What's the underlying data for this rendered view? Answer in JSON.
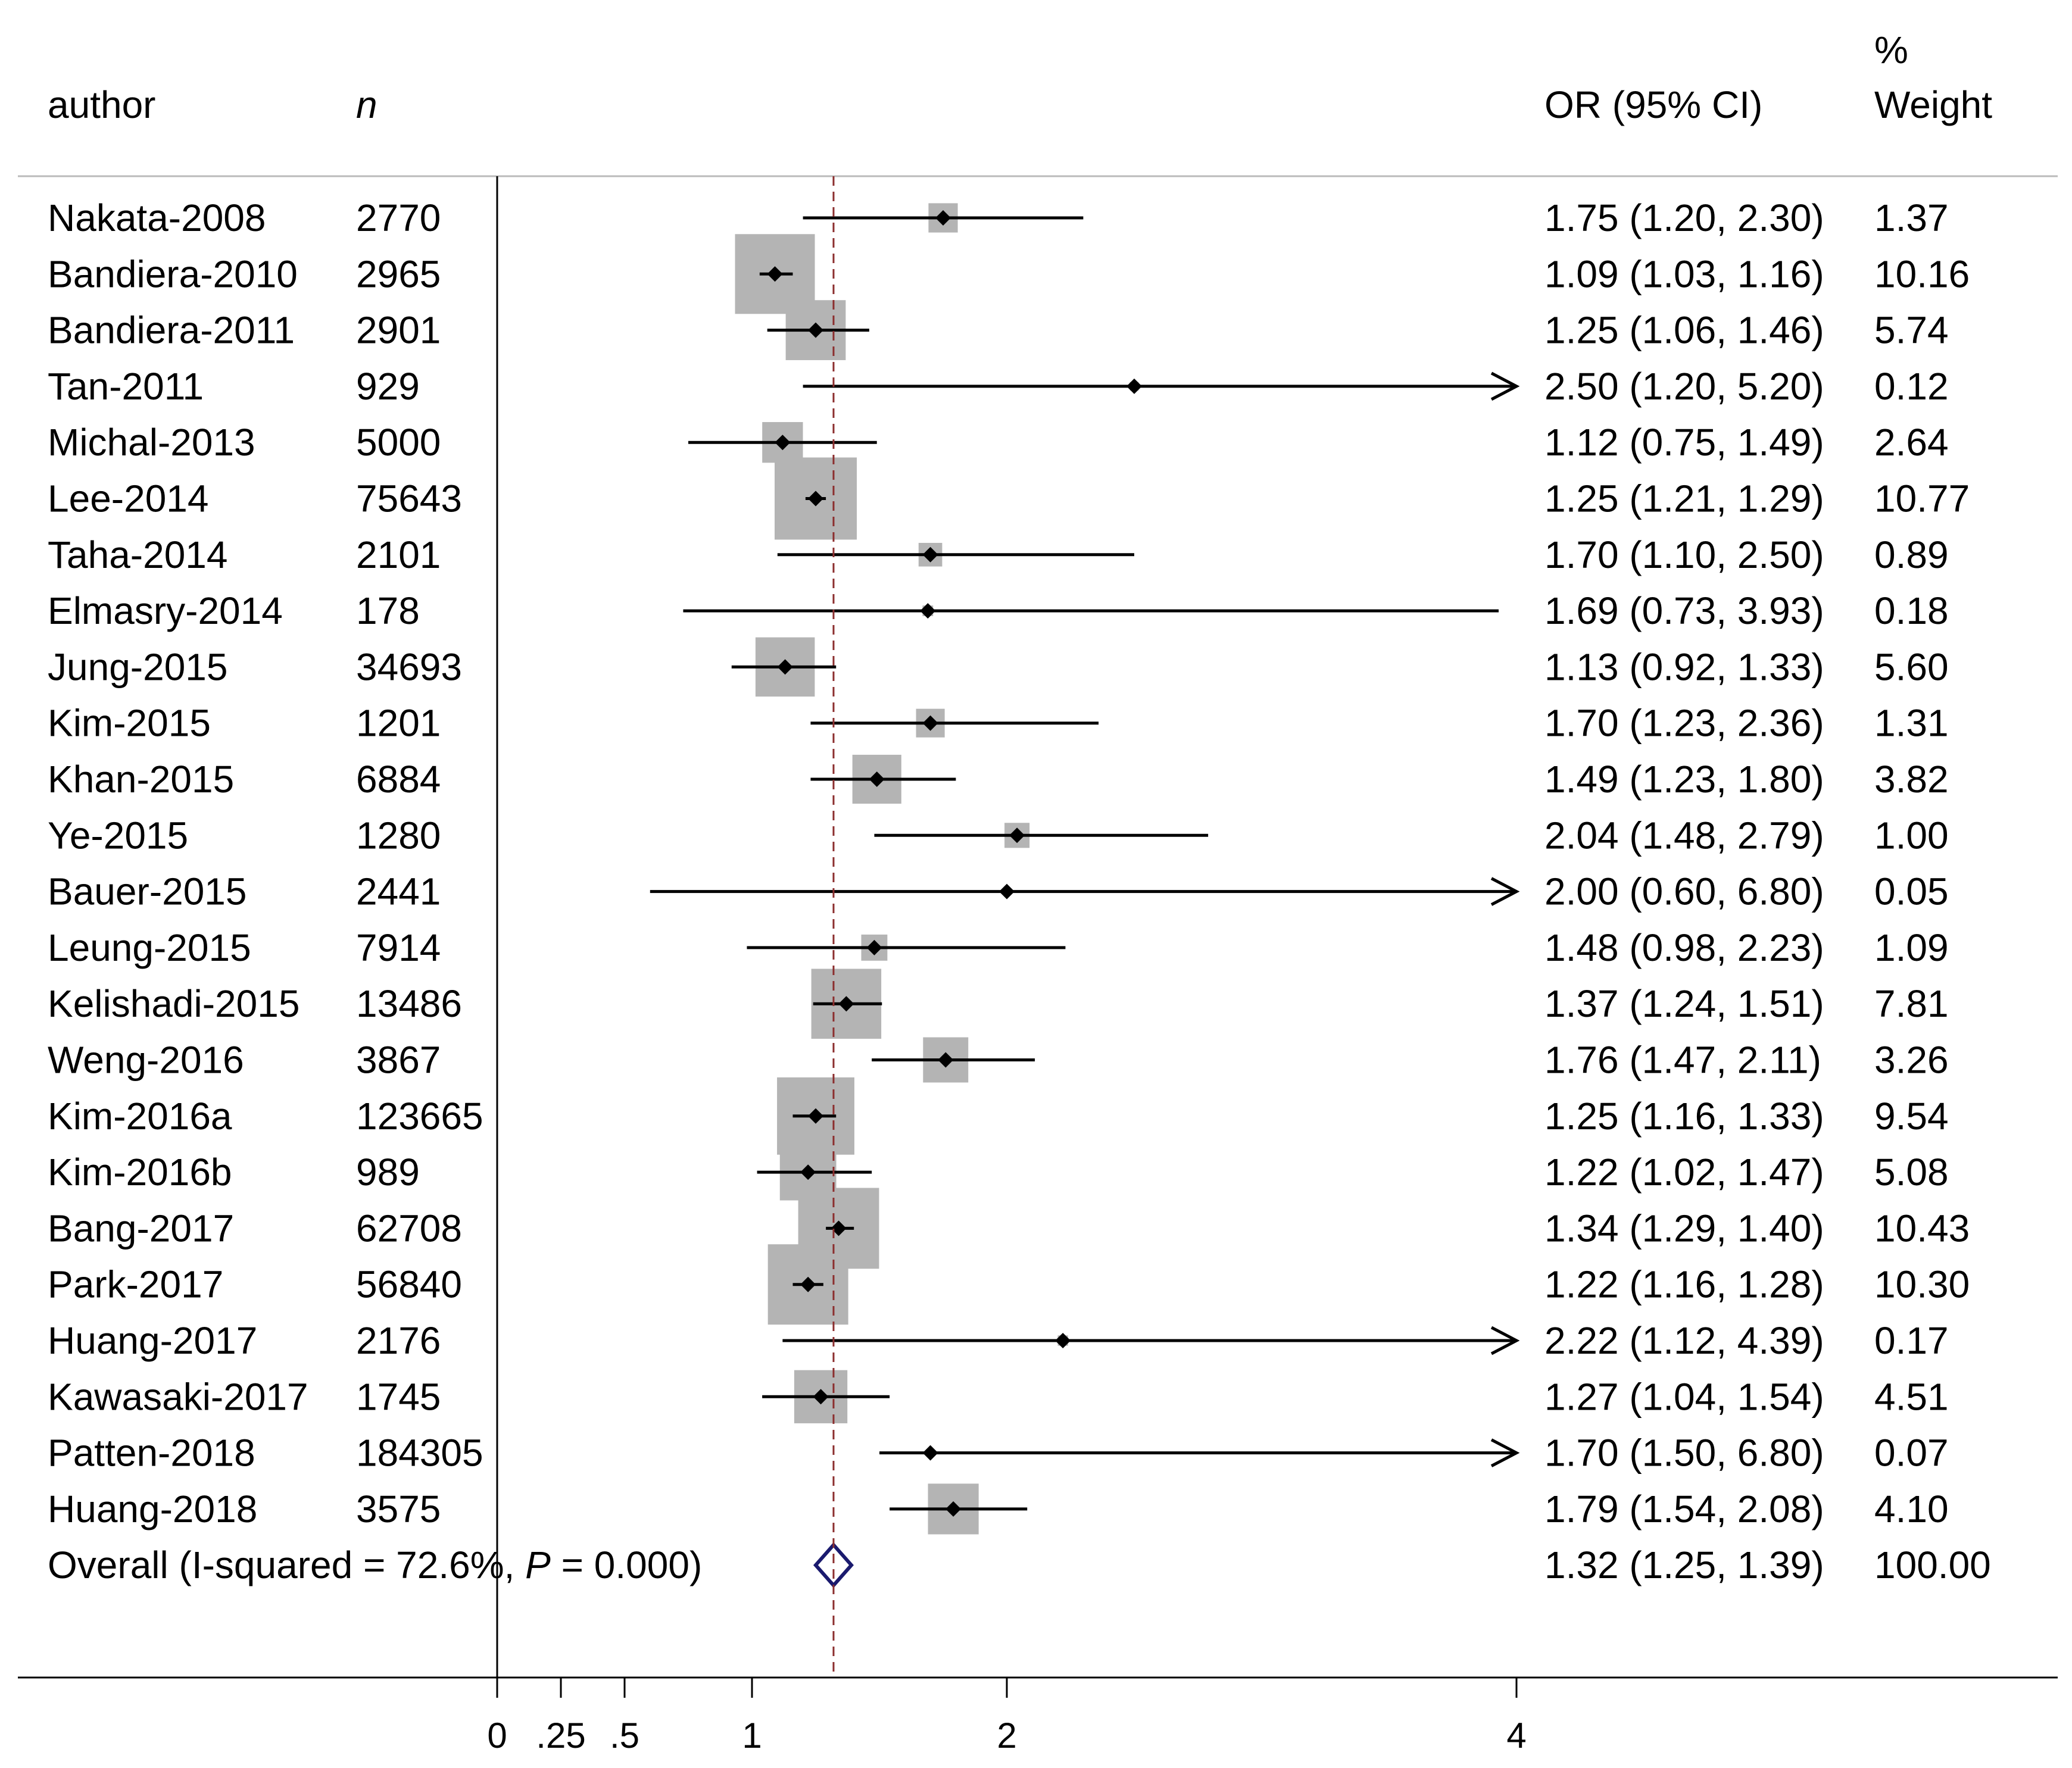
{
  "chart_data": {
    "type": "forest",
    "measure": "OR",
    "columns": {
      "author": "author",
      "n": "n",
      "ci": "OR (95% CI)",
      "weight_top": "%",
      "weight_bottom": "Weight"
    },
    "x_ticks": [
      0,
      0.25,
      0.5,
      1,
      2,
      4
    ],
    "x_tick_labels": [
      "0",
      ".25",
      ".5",
      "1",
      "2",
      "4"
    ],
    "xlim": [
      0,
      4
    ],
    "reference_line": 1.32,
    "studies": [
      {
        "author": "Nakata-2008",
        "n": "2770",
        "or": 1.75,
        "lo": 1.2,
        "hi": 2.3,
        "ci_text": "1.75 (1.20, 2.30)",
        "weight": 1.37,
        "weight_text": "1.37"
      },
      {
        "author": "Bandiera-2010",
        "n": "2965",
        "or": 1.09,
        "lo": 1.03,
        "hi": 1.16,
        "ci_text": "1.09 (1.03, 1.16)",
        "weight": 10.16,
        "weight_text": "10.16"
      },
      {
        "author": "Bandiera-2011",
        "n": "2901",
        "or": 1.25,
        "lo": 1.06,
        "hi": 1.46,
        "ci_text": "1.25 (1.06, 1.46)",
        "weight": 5.74,
        "weight_text": "5.74"
      },
      {
        "author": "Tan-2011",
        "n": "929",
        "or": 2.5,
        "lo": 1.2,
        "hi": 5.2,
        "ci_text": "2.50 (1.20, 5.20)",
        "weight": 0.12,
        "weight_text": "0.12"
      },
      {
        "author": "Michal-2013",
        "n": "5000",
        "or": 1.12,
        "lo": 0.75,
        "hi": 1.49,
        "ci_text": "1.12 (0.75, 1.49)",
        "weight": 2.64,
        "weight_text": "2.64"
      },
      {
        "author": "Lee-2014",
        "n": "75643",
        "or": 1.25,
        "lo": 1.21,
        "hi": 1.29,
        "ci_text": "1.25 (1.21, 1.29)",
        "weight": 10.77,
        "weight_text": "10.77"
      },
      {
        "author": "Taha-2014",
        "n": "2101",
        "or": 1.7,
        "lo": 1.1,
        "hi": 2.5,
        "ci_text": "1.70 (1.10, 2.50)",
        "weight": 0.89,
        "weight_text": "0.89"
      },
      {
        "author": "Elmasry-2014",
        "n": "178",
        "or": 1.69,
        "lo": 0.73,
        "hi": 3.93,
        "ci_text": "1.69 (0.73, 3.93)",
        "weight": 0.18,
        "weight_text": "0.18"
      },
      {
        "author": "Jung-2015",
        "n": "34693",
        "or": 1.13,
        "lo": 0.92,
        "hi": 1.33,
        "ci_text": "1.13 (0.92, 1.33)",
        "weight": 5.6,
        "weight_text": "5.60"
      },
      {
        "author": "Kim-2015",
        "n": "1201",
        "or": 1.7,
        "lo": 1.23,
        "hi": 2.36,
        "ci_text": "1.70 (1.23, 2.36)",
        "weight": 1.31,
        "weight_text": "1.31"
      },
      {
        "author": "Khan-2015",
        "n": "6884",
        "or": 1.49,
        "lo": 1.23,
        "hi": 1.8,
        "ci_text": "1.49 (1.23, 1.80)",
        "weight": 3.82,
        "weight_text": "3.82"
      },
      {
        "author": "Ye-2015",
        "n": "1280",
        "or": 2.04,
        "lo": 1.48,
        "hi": 2.79,
        "ci_text": "2.04 (1.48, 2.79)",
        "weight": 1.0,
        "weight_text": "1.00"
      },
      {
        "author": "Bauer-2015",
        "n": "2441",
        "or": 2.0,
        "lo": 0.6,
        "hi": 6.8,
        "ci_text": "2.00 (0.60, 6.80)",
        "weight": 0.05,
        "weight_text": "0.05"
      },
      {
        "author": "Leung-2015",
        "n": "7914",
        "or": 1.48,
        "lo": 0.98,
        "hi": 2.23,
        "ci_text": "1.48 (0.98, 2.23)",
        "weight": 1.09,
        "weight_text": "1.09"
      },
      {
        "author": "Kelishadi-2015",
        "n": "13486",
        "or": 1.37,
        "lo": 1.24,
        "hi": 1.51,
        "ci_text": "1.37 (1.24, 1.51)",
        "weight": 7.81,
        "weight_text": "7.81"
      },
      {
        "author": "Weng-2016",
        "n": "3867",
        "or": 1.76,
        "lo": 1.47,
        "hi": 2.11,
        "ci_text": "1.76 (1.47, 2.11)",
        "weight": 3.26,
        "weight_text": "3.26"
      },
      {
        "author": "Kim-2016a",
        "n": "123665",
        "or": 1.25,
        "lo": 1.16,
        "hi": 1.33,
        "ci_text": "1.25 (1.16, 1.33)",
        "weight": 9.54,
        "weight_text": "9.54"
      },
      {
        "author": "Kim-2016b",
        "n": "989",
        "or": 1.22,
        "lo": 1.02,
        "hi": 1.47,
        "ci_text": "1.22 (1.02, 1.47)",
        "weight": 5.08,
        "weight_text": "5.08"
      },
      {
        "author": "Bang-2017",
        "n": "62708",
        "or": 1.34,
        "lo": 1.29,
        "hi": 1.4,
        "ci_text": "1.34 (1.29, 1.40)",
        "weight": 10.43,
        "weight_text": "10.43"
      },
      {
        "author": "Park-2017",
        "n": "56840",
        "or": 1.22,
        "lo": 1.16,
        "hi": 1.28,
        "ci_text": "1.22 (1.16, 1.28)",
        "weight": 10.3,
        "weight_text": "10.30"
      },
      {
        "author": "Huang-2017",
        "n": "2176",
        "or": 2.22,
        "lo": 1.12,
        "hi": 4.39,
        "ci_text": "2.22 (1.12, 4.39)",
        "weight": 0.17,
        "weight_text": "0.17"
      },
      {
        "author": "Kawasaki-2017",
        "n": "1745",
        "or": 1.27,
        "lo": 1.04,
        "hi": 1.54,
        "ci_text": "1.27 (1.04, 1.54)",
        "weight": 4.51,
        "weight_text": "4.51"
      },
      {
        "author": "Patten-2018",
        "n": "184305",
        "or": 1.7,
        "lo": 1.5,
        "hi": 6.8,
        "ci_text": "1.70 (1.50, 6.80)",
        "weight": 0.07,
        "weight_text": "0.07"
      },
      {
        "author": "Huang-2018",
        "n": "3575",
        "or": 1.79,
        "lo": 1.54,
        "hi": 2.08,
        "ci_text": "1.79 (1.54, 2.08)",
        "weight": 4.1,
        "weight_text": "4.10"
      }
    ],
    "overall": {
      "label_prefix": "Overall  (I-squared = 72.6%, ",
      "p_symbol": "P",
      "label_suffix": " = 0.000)",
      "or": 1.32,
      "lo": 1.25,
      "hi": 1.39,
      "ci_text": "1.32 (1.25, 1.39)",
      "weight_text": "100.00"
    },
    "colors": {
      "square": "#b4b4b4",
      "line": "#000000",
      "reference": "#8b2e2e",
      "diamond": "#1a1a6e",
      "rule": "#bbbbbb"
    }
  }
}
